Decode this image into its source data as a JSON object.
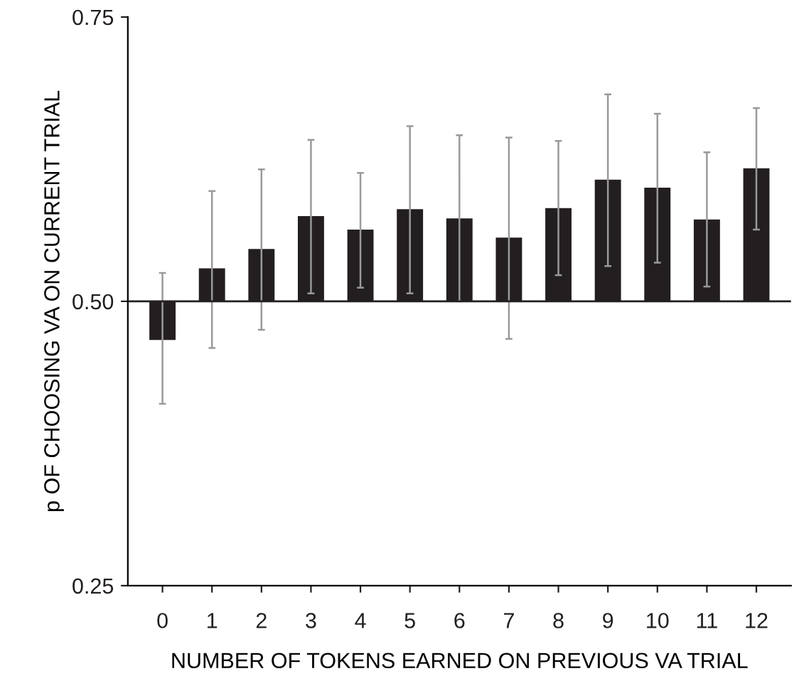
{
  "chart_data": {
    "type": "bar",
    "xlabel": "NUMBER OF TOKENS EARNED ON PREVIOUS VA TRIAL",
    "ylabel": "p OF CHOOSING VA ON CURRENT TRIAL",
    "categories": [
      "0",
      "1",
      "2",
      "3",
      "4",
      "5",
      "6",
      "7",
      "8",
      "9",
      "10",
      "11",
      "12"
    ],
    "series": [
      {
        "color": "#231f20",
        "values": [
          -0.034,
          0.029,
          0.046,
          0.075,
          0.063,
          0.081,
          0.073,
          0.056,
          0.082,
          0.107,
          0.1,
          0.072,
          0.117
        ],
        "base": [
          0.5,
          0.5,
          0.5,
          0.5,
          0.5,
          0.5,
          0.5,
          0.5,
          0.5,
          0.5,
          0.5,
          0.5,
          0.5
        ],
        "errors": [
          [
            0.41,
            0.525
          ],
          [
            0.459,
            0.597
          ],
          [
            0.475,
            0.616
          ],
          [
            0.507,
            0.642
          ],
          [
            0.512,
            0.613
          ],
          [
            0.507,
            0.654
          ],
          [
            0.5,
            0.646
          ],
          [
            0.467,
            0.644
          ],
          [
            0.523,
            0.641
          ],
          [
            0.531,
            0.682
          ],
          [
            0.534,
            0.665
          ],
          [
            0.513,
            0.631
          ],
          [
            0.563,
            0.67
          ]
        ]
      }
    ],
    "ylim": [
      0.25,
      0.75
    ],
    "yticks": [
      0.25,
      {
        "value": 0.5,
        "label": "0.50"
      },
      0.75
    ],
    "ref_lines": [
      {
        "axis": "y",
        "value": 0.5,
        "label": null,
        "color": "#231f20"
      }
    ],
    "grid": false,
    "legend": false
  }
}
